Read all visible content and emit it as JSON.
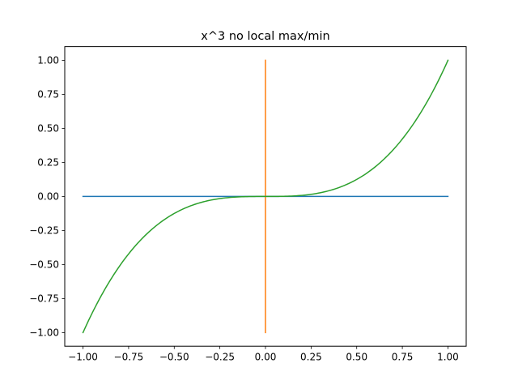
{
  "chart_data": {
    "type": "line",
    "title": "x^3 no local max/min",
    "xlabel": "",
    "ylabel": "",
    "xlim": [
      -1.1,
      1.1
    ],
    "ylim": [
      -1.1,
      1.1
    ],
    "grid": false,
    "legend": "none",
    "x_ticks": [
      -1.0,
      -0.75,
      -0.5,
      -0.25,
      0.0,
      0.25,
      0.5,
      0.75,
      1.0
    ],
    "x_tick_labels": [
      "−1.00",
      "−0.75",
      "−0.50",
      "−0.25",
      "0.00",
      "0.25",
      "0.50",
      "0.75",
      "1.00"
    ],
    "y_ticks": [
      -1.0,
      -0.75,
      -0.5,
      -0.25,
      0.0,
      0.25,
      0.5,
      0.75,
      1.0
    ],
    "y_tick_labels": [
      "−1.00",
      "−0.75",
      "−0.50",
      "−0.25",
      "0.00",
      "0.25",
      "0.50",
      "0.75",
      "1.00"
    ],
    "series": [
      {
        "color": "#1f77b4",
        "x": [
          -1.0,
          1.0
        ],
        "y": [
          0.0,
          0.0
        ]
      },
      {
        "color": "#ff7f0e",
        "x": [
          0.0,
          0.0
        ],
        "y": [
          -1.0,
          1.0
        ]
      },
      {
        "color": "#2ca02c",
        "x": [
          -1.0,
          -0.9,
          -0.8,
          -0.7,
          -0.6,
          -0.5,
          -0.4,
          -0.3,
          -0.2,
          -0.1,
          0.0,
          0.1,
          0.2,
          0.3,
          0.4,
          0.5,
          0.6,
          0.7,
          0.8,
          0.9,
          1.0
        ],
        "y": [
          -1.0,
          -0.729,
          -0.512,
          -0.343,
          -0.216,
          -0.125,
          -0.064,
          -0.027,
          -0.008,
          -0.001,
          0.0,
          0.001,
          0.008,
          0.027,
          0.064,
          0.125,
          0.216,
          0.343,
          0.512,
          0.729,
          1.0
        ]
      }
    ]
  }
}
